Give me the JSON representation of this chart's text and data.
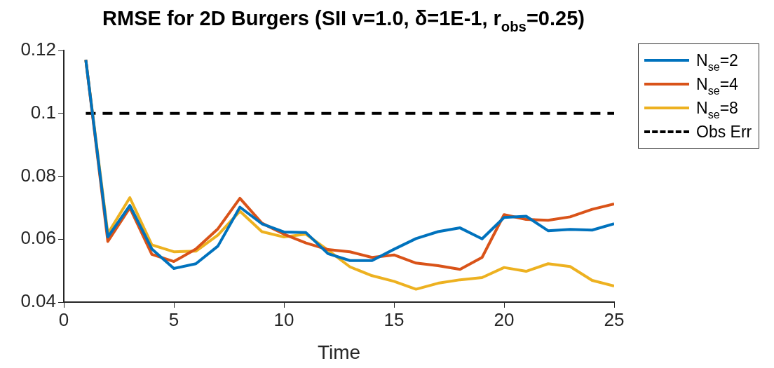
{
  "chart_data": {
    "type": "line",
    "title": "RMSE for 2D Burgers (SII v=1.0, δ=1E-1, r$_{obs}$=0.25)",
    "xlabel": "Time",
    "x": [
      1,
      2,
      3,
      4,
      5,
      6,
      7,
      8,
      9,
      10,
      11,
      12,
      13,
      14,
      15,
      16,
      17,
      18,
      19,
      20,
      21,
      22,
      23,
      24,
      25
    ],
    "series": [
      {
        "name": "N$_{se}$=2",
        "color": "#0072bd",
        "values": [
          0.117,
          0.0607,
          0.0707,
          0.0569,
          0.0507,
          0.0522,
          0.0578,
          0.0702,
          0.0649,
          0.0623,
          0.0621,
          0.0554,
          0.0532,
          0.0532,
          0.0568,
          0.0602,
          0.0624,
          0.0636,
          0.0601,
          0.0669,
          0.0673,
          0.0627,
          0.0631,
          0.0629,
          0.0649
        ]
      },
      {
        "name": "N$_{se}$=4",
        "color": "#d95319",
        "values": [
          0.117,
          0.0593,
          0.07,
          0.0552,
          0.0529,
          0.0569,
          0.0633,
          0.073,
          0.0651,
          0.0616,
          0.0588,
          0.0567,
          0.056,
          0.0542,
          0.055,
          0.0524,
          0.0516,
          0.0504,
          0.0542,
          0.0678,
          0.0663,
          0.066,
          0.0671,
          0.0695,
          0.0712
        ]
      },
      {
        "name": "N$_{se}$=8",
        "color": "#edb120",
        "values": [
          0.117,
          0.0618,
          0.0732,
          0.0582,
          0.056,
          0.0562,
          0.0613,
          0.0689,
          0.0624,
          0.0607,
          0.0616,
          0.0565,
          0.0512,
          0.0484,
          0.0466,
          0.0441,
          0.046,
          0.0471,
          0.0478,
          0.051,
          0.0498,
          0.0522,
          0.0513,
          0.0469,
          0.0451
        ]
      },
      {
        "name": "Obs Err",
        "color": "#000000",
        "line_style": "dashed",
        "values": [
          0.1,
          0.1,
          0.1,
          0.1,
          0.1,
          0.1,
          0.1,
          0.1,
          0.1,
          0.1,
          0.1,
          0.1,
          0.1,
          0.1,
          0.1,
          0.1,
          0.1,
          0.1,
          0.1,
          0.1,
          0.1,
          0.1,
          0.1,
          0.1,
          0.1
        ]
      }
    ],
    "xlim": [
      0,
      25
    ],
    "xticks": [
      0,
      5,
      10,
      15,
      20,
      25
    ],
    "ylim": [
      0.04,
      0.12
    ],
    "yticks": [
      0.04,
      0.06,
      0.08,
      0.1,
      0.12
    ],
    "grid": false,
    "legend": "right",
    "marker": "none",
    "line_style": "solid"
  }
}
